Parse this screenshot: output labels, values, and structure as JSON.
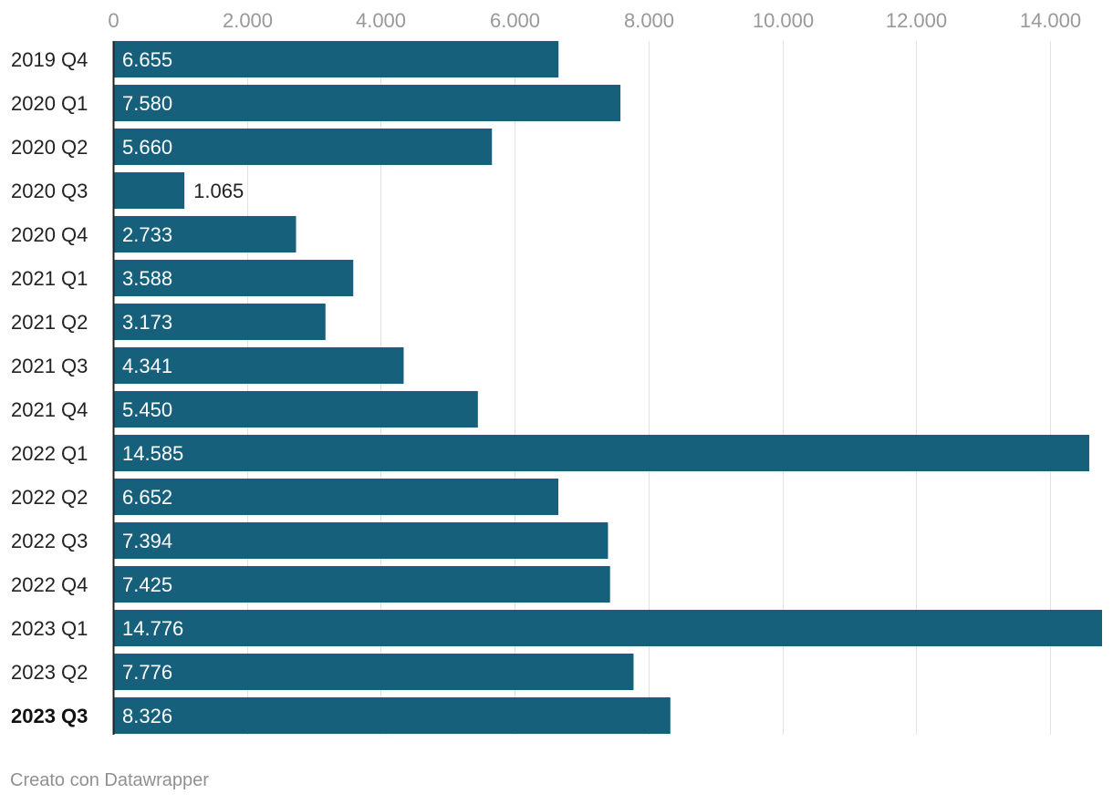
{
  "chart_data": {
    "type": "bar",
    "orientation": "horizontal",
    "categories": [
      "2019 Q4",
      "2020 Q1",
      "2020 Q2",
      "2020 Q3",
      "2020 Q4",
      "2021 Q1",
      "2021 Q2",
      "2021 Q3",
      "2021 Q4",
      "2022 Q1",
      "2022 Q2",
      "2022 Q3",
      "2022 Q4",
      "2023 Q1",
      "2023 Q2",
      "2023 Q3"
    ],
    "values": [
      6655,
      7580,
      5660,
      1065,
      2733,
      3588,
      3173,
      4341,
      5450,
      14585,
      6652,
      7394,
      7425,
      14776,
      7776,
      8326
    ],
    "value_labels": [
      "6.655",
      "7.580",
      "5.660",
      "1.065",
      "2.733",
      "3.588",
      "3.173",
      "4.341",
      "5.450",
      "14.585",
      "6.652",
      "7.394",
      "7.425",
      "14.776",
      "7.776",
      "8.326"
    ],
    "highlighted_category": "2023 Q3",
    "xlim": [
      0,
      14776
    ],
    "x_ticks": [
      0,
      2000,
      4000,
      6000,
      8000,
      10000,
      12000,
      14000
    ],
    "x_tick_labels": [
      "0",
      "2.000",
      "4.000",
      "6.000",
      "8.000",
      "10.000",
      "12.000",
      "14.000"
    ],
    "grid": true,
    "axis_position": "top",
    "title": "",
    "xlabel": "",
    "ylabel": ""
  },
  "colors": {
    "bar": "#17607b",
    "grid": "#e2e2e2",
    "axis": "#222222",
    "label_inside": "#ffffff",
    "label_outside": "#222222"
  },
  "footer": {
    "credit": "Creato con Datawrapper"
  }
}
